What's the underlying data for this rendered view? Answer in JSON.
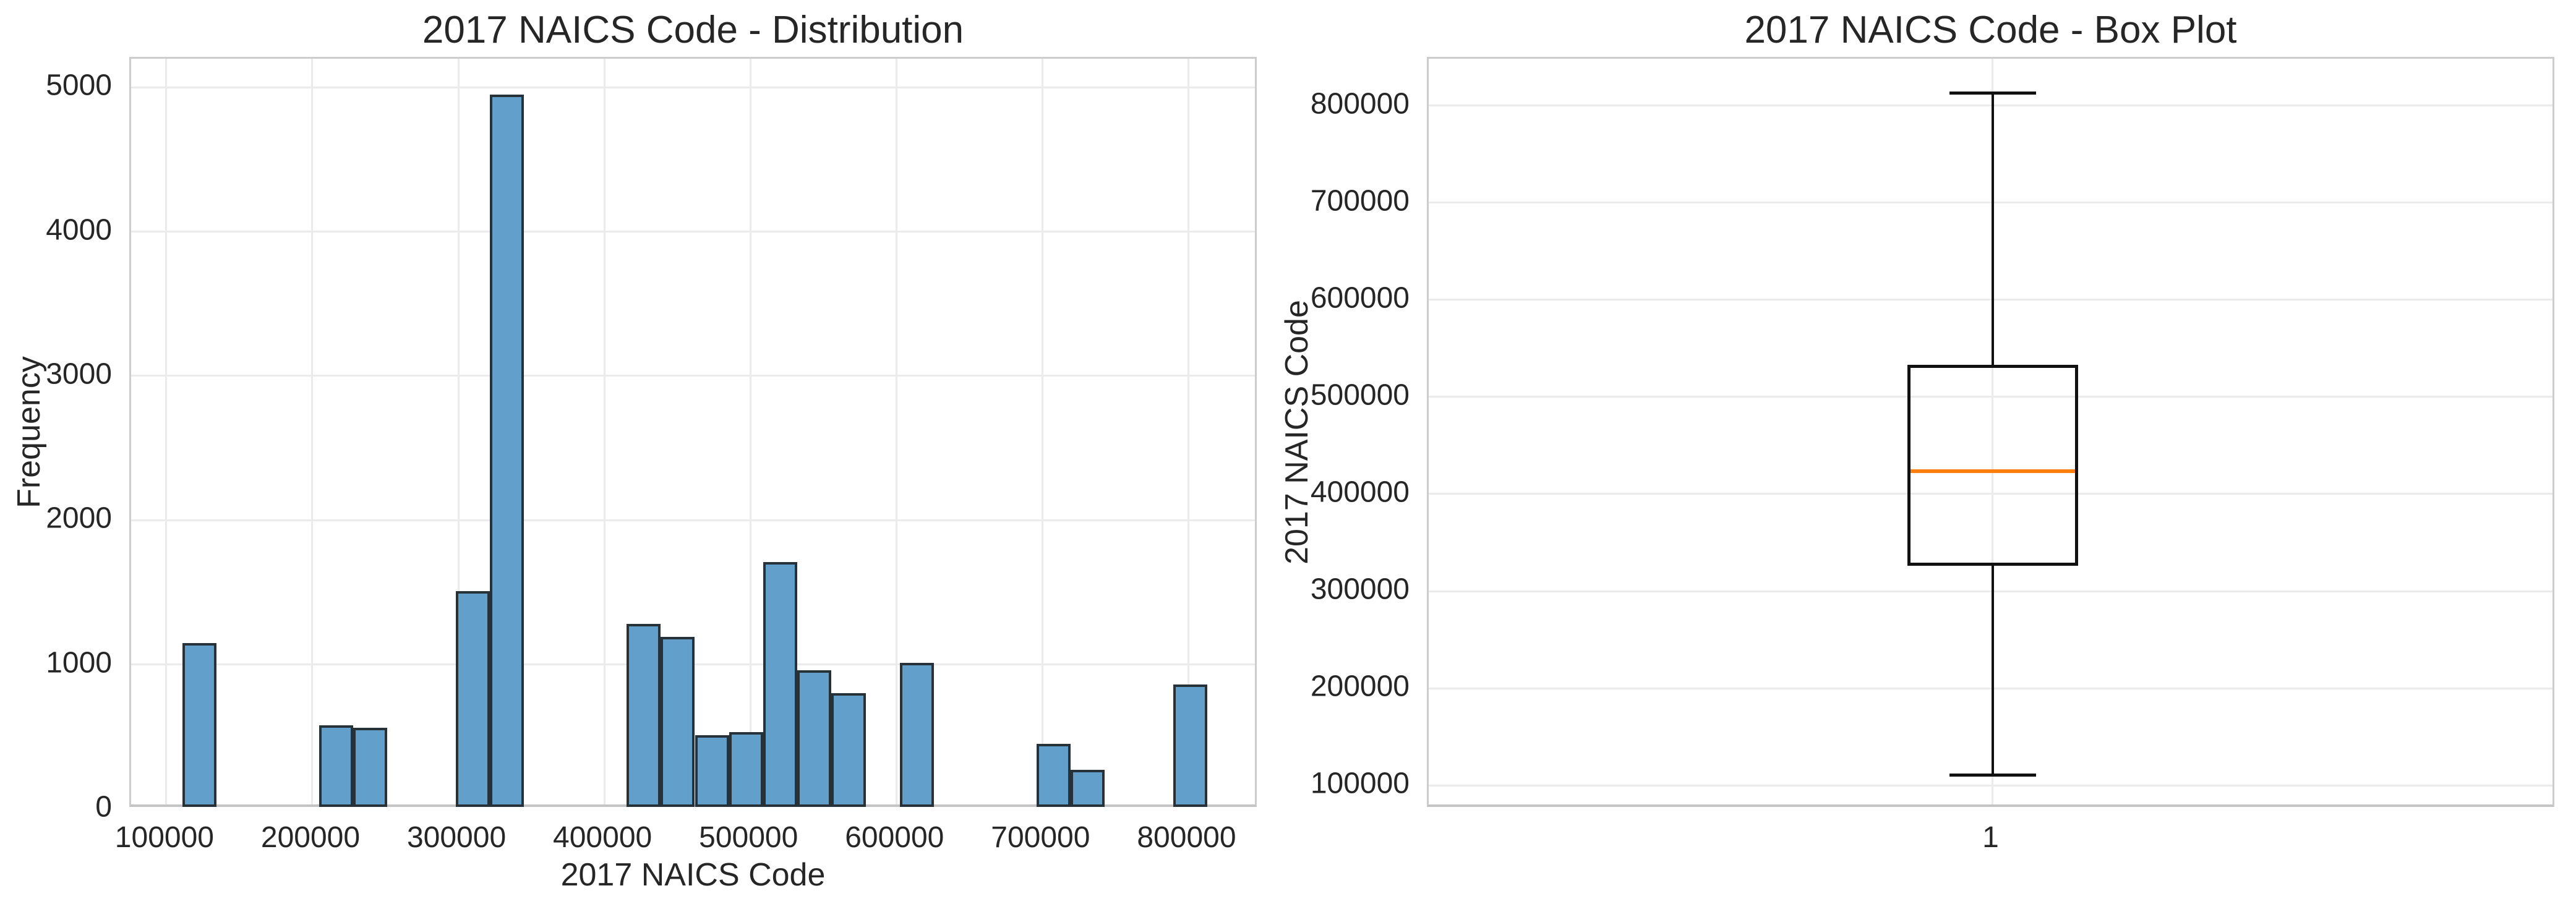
{
  "figure": {
    "background": "#ffffff",
    "text_color": "#262626",
    "grid_color": "#ebebeb",
    "spine_color": "#cccccc"
  },
  "chart_data": [
    {
      "type": "bar",
      "subtype": "histogram",
      "title": "2017 NAICS Code - Distribution",
      "xlabel": "2017 NAICS Code",
      "ylabel": "Frequency",
      "xlim": [
        75900,
        848100
      ],
      "ylim": [
        0,
        5198
      ],
      "x_ticks": [
        100000,
        200000,
        300000,
        400000,
        500000,
        600000,
        700000,
        800000
      ],
      "y_ticks": [
        0,
        1000,
        2000,
        3000,
        4000,
        5000
      ],
      "grid": true,
      "legend": false,
      "bar_color": "#629fca",
      "bar_edge_color": "#263238",
      "bins": [
        {
          "start": 111000,
          "end": 134400,
          "count": 1150
        },
        {
          "start": 204600,
          "end": 228000,
          "count": 580
        },
        {
          "start": 228000,
          "end": 251400,
          "count": 560
        },
        {
          "start": 298200,
          "end": 321600,
          "count": 1510
        },
        {
          "start": 321600,
          "end": 345000,
          "count": 4950
        },
        {
          "start": 415200,
          "end": 438600,
          "count": 1280
        },
        {
          "start": 438600,
          "end": 462000,
          "count": 1190
        },
        {
          "start": 462000,
          "end": 485400,
          "count": 510
        },
        {
          "start": 485400,
          "end": 508800,
          "count": 530
        },
        {
          "start": 508800,
          "end": 532200,
          "count": 1710
        },
        {
          "start": 532200,
          "end": 555600,
          "count": 960
        },
        {
          "start": 555600,
          "end": 579000,
          "count": 800
        },
        {
          "start": 602400,
          "end": 625800,
          "count": 1010
        },
        {
          "start": 696000,
          "end": 719400,
          "count": 450
        },
        {
          "start": 719400,
          "end": 742800,
          "count": 270
        },
        {
          "start": 789600,
          "end": 813000,
          "count": 860
        }
      ]
    },
    {
      "type": "box",
      "title": "2017 NAICS Code - Box Plot",
      "xlabel": "",
      "ylabel": "2017 NAICS Code",
      "x_tick_labels": [
        "1"
      ],
      "ylim": [
        76000,
        848100
      ],
      "y_ticks": [
        100000,
        200000,
        300000,
        400000,
        500000,
        600000,
        700000,
        800000
      ],
      "grid": true,
      "box_line_color": "#111111",
      "median_color": "#ff7f0e",
      "stats": {
        "whisker_low": 111000,
        "q1": 326000,
        "median": 423500,
        "q3": 533000,
        "whisker_high": 813000,
        "outliers": []
      }
    }
  ]
}
